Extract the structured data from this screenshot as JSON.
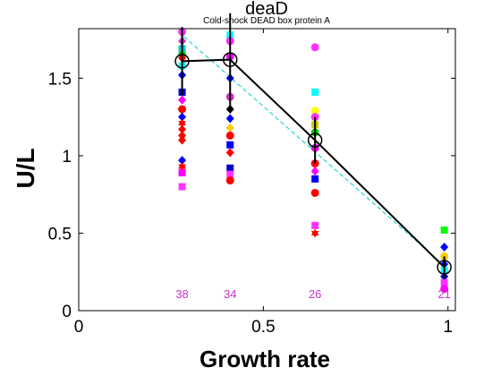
{
  "chart_data": {
    "type": "scatter",
    "title": "deaD",
    "subtitle": "Cold-shock DEAD box protein A",
    "xlabel": "Growth rate",
    "ylabel": "U/L",
    "xlim": [
      0,
      1.02
    ],
    "ylim": [
      0,
      1.82
    ],
    "xticks": [
      {
        "value": 0,
        "label": "0"
      },
      {
        "value": 0.5,
        "label": "0.5"
      },
      {
        "value": 1,
        "label": "1"
      }
    ],
    "yticks": [
      {
        "value": 0,
        "label": "0"
      },
      {
        "value": 0.5,
        "label": "0.5"
      },
      {
        "value": 1,
        "label": "1"
      },
      {
        "value": 1.5,
        "label": "1.5"
      }
    ],
    "grid": false,
    "colors": {
      "axis": "#000000",
      "mean_line": "#000000",
      "fit_line": "#00cccc",
      "count_label": "#cc33cc"
    },
    "mean_line": {
      "x": [
        0.28,
        0.41,
        0.64,
        0.99
      ],
      "y": [
        1.61,
        1.62,
        1.1,
        0.28
      ],
      "error": [
        0.22,
        0.3,
        0.15,
        0.07
      ]
    },
    "fit_line": {
      "x": [
        0.27,
        1.0
      ],
      "y": [
        1.8,
        0.27
      ]
    },
    "counts": [
      {
        "x": 0.28,
        "label": "38"
      },
      {
        "x": 0.41,
        "label": "34"
      },
      {
        "x": 0.64,
        "label": "26"
      },
      {
        "x": 0.99,
        "label": "21"
      }
    ],
    "points": [
      {
        "x": 0.28,
        "y": 1.8,
        "shape": "circle",
        "color": "#ff33ff"
      },
      {
        "x": 0.28,
        "y": 1.74,
        "shape": "diamond",
        "color": "#cc33cc"
      },
      {
        "x": 0.28,
        "y": 1.69,
        "shape": "square",
        "color": "#00cccc"
      },
      {
        "x": 0.28,
        "y": 1.65,
        "shape": "circle",
        "color": "#00cc00"
      },
      {
        "x": 0.28,
        "y": 1.63,
        "shape": "diamond",
        "color": "#ff0000"
      },
      {
        "x": 0.28,
        "y": 1.58,
        "shape": "square",
        "color": "#00ffff"
      },
      {
        "x": 0.28,
        "y": 1.52,
        "shape": "diamond",
        "color": "#0000ff"
      },
      {
        "x": 0.28,
        "y": 1.41,
        "shape": "square",
        "color": "#0000cc"
      },
      {
        "x": 0.28,
        "y": 1.36,
        "shape": "diamond",
        "color": "#ff00ff"
      },
      {
        "x": 0.28,
        "y": 1.3,
        "shape": "circle",
        "color": "#ff0000"
      },
      {
        "x": 0.28,
        "y": 1.25,
        "shape": "diamond",
        "color": "#0000ff"
      },
      {
        "x": 0.28,
        "y": 1.21,
        "shape": "hexagram",
        "color": "#ff0000"
      },
      {
        "x": 0.28,
        "y": 1.17,
        "shape": "diamond",
        "color": "#ff0000"
      },
      {
        "x": 0.28,
        "y": 1.13,
        "shape": "diamond",
        "color": "#ff0000"
      },
      {
        "x": 0.28,
        "y": 1.1,
        "shape": "diamond",
        "color": "#ff0000"
      },
      {
        "x": 0.28,
        "y": 0.97,
        "shape": "diamond",
        "color": "#0000ff"
      },
      {
        "x": 0.28,
        "y": 0.93,
        "shape": "hexagram",
        "color": "#ff0000"
      },
      {
        "x": 0.28,
        "y": 0.89,
        "shape": "square",
        "color": "#ff00ff"
      },
      {
        "x": 0.28,
        "y": 0.8,
        "shape": "square",
        "color": "#ff33ff"
      },
      {
        "x": 0.41,
        "y": 1.78,
        "shape": "square",
        "color": "#00ffff"
      },
      {
        "x": 0.41,
        "y": 1.74,
        "shape": "circle",
        "color": "#ff33ff"
      },
      {
        "x": 0.41,
        "y": 1.64,
        "shape": "circle",
        "color": "#ff00ff"
      },
      {
        "x": 0.41,
        "y": 1.5,
        "shape": "diamond",
        "color": "#0000ff"
      },
      {
        "x": 0.41,
        "y": 1.38,
        "shape": "circle",
        "color": "#cc33cc"
      },
      {
        "x": 0.41,
        "y": 1.3,
        "shape": "diamond",
        "color": "#000000"
      },
      {
        "x": 0.41,
        "y": 1.24,
        "shape": "diamond",
        "color": "#0000ff"
      },
      {
        "x": 0.41,
        "y": 1.18,
        "shape": "diamond",
        "color": "#ffcc00"
      },
      {
        "x": 0.41,
        "y": 1.13,
        "shape": "circle",
        "color": "#ff0000"
      },
      {
        "x": 0.41,
        "y": 1.07,
        "shape": "square",
        "color": "#0000ff"
      },
      {
        "x": 0.41,
        "y": 1.02,
        "shape": "diamond",
        "color": "#ff0000"
      },
      {
        "x": 0.41,
        "y": 0.92,
        "shape": "square",
        "color": "#0000cc"
      },
      {
        "x": 0.41,
        "y": 0.88,
        "shape": "square",
        "color": "#ff33ff"
      },
      {
        "x": 0.41,
        "y": 0.84,
        "shape": "circle",
        "color": "#ff0000"
      },
      {
        "x": 0.64,
        "y": 1.7,
        "shape": "circle",
        "color": "#ff33ff"
      },
      {
        "x": 0.64,
        "y": 1.41,
        "shape": "square",
        "color": "#00ffff"
      },
      {
        "x": 0.64,
        "y": 1.29,
        "shape": "circle",
        "color": "#ffff00"
      },
      {
        "x": 0.64,
        "y": 1.25,
        "shape": "circle",
        "color": "#ff33ff"
      },
      {
        "x": 0.64,
        "y": 1.2,
        "shape": "square",
        "color": "#cccc00"
      },
      {
        "x": 0.64,
        "y": 1.15,
        "shape": "circle",
        "color": "#00cc00"
      },
      {
        "x": 0.64,
        "y": 1.05,
        "shape": "circle",
        "color": "#ff00ff"
      },
      {
        "x": 0.64,
        "y": 0.95,
        "shape": "circle",
        "color": "#ff0000"
      },
      {
        "x": 0.64,
        "y": 0.9,
        "shape": "diamond",
        "color": "#ff00ff"
      },
      {
        "x": 0.64,
        "y": 0.85,
        "shape": "square",
        "color": "#0000ff"
      },
      {
        "x": 0.64,
        "y": 0.76,
        "shape": "circle",
        "color": "#ff0000"
      },
      {
        "x": 0.64,
        "y": 0.55,
        "shape": "square",
        "color": "#ff33ff"
      },
      {
        "x": 0.64,
        "y": 0.5,
        "shape": "hexagram",
        "color": "#ff0000"
      },
      {
        "x": 0.99,
        "y": 0.52,
        "shape": "square",
        "color": "#00ff00"
      },
      {
        "x": 0.99,
        "y": 0.41,
        "shape": "diamond",
        "color": "#0000ff"
      },
      {
        "x": 0.99,
        "y": 0.35,
        "shape": "circle",
        "color": "#ffcc00"
      },
      {
        "x": 0.99,
        "y": 0.3,
        "shape": "diamond",
        "color": "#0000ff"
      },
      {
        "x": 0.99,
        "y": 0.26,
        "shape": "square",
        "color": "#00ffff"
      },
      {
        "x": 0.99,
        "y": 0.22,
        "shape": "diamond",
        "color": "#0000cc"
      },
      {
        "x": 0.99,
        "y": 0.18,
        "shape": "square",
        "color": "#ff33ff"
      },
      {
        "x": 0.99,
        "y": 0.14,
        "shape": "circle",
        "color": "#ff00ff"
      }
    ]
  }
}
